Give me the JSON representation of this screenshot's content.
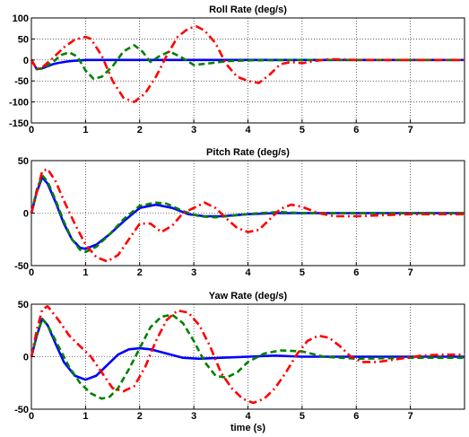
{
  "chart_data": [
    {
      "type": "line",
      "title": "Roll Rate (deg/s)",
      "xlabel": "",
      "ylabel": "",
      "xlim": [
        0,
        8
      ],
      "ylim": [
        -150,
        100
      ],
      "xticks": [
        0,
        1,
        2,
        3,
        4,
        5,
        6,
        7
      ],
      "yticks": [
        -150,
        -100,
        -50,
        0,
        50,
        100
      ],
      "grid": true,
      "series": [
        {
          "color": "#0000ff",
          "style": "solid",
          "x": [
            0,
            0.1,
            0.2,
            0.3,
            0.4,
            0.5,
            0.6,
            0.7,
            0.8,
            0.9,
            1.0,
            1.2,
            1.5,
            2.0,
            3.0,
            8.0
          ],
          "y": [
            0,
            -22,
            -20,
            -15,
            -10,
            -7,
            -5,
            -3,
            -2,
            -1,
            0,
            0,
            0,
            0,
            0,
            0
          ]
        },
        {
          "color": "#008000",
          "style": "dashed",
          "x": [
            0,
            0.1,
            0.2,
            0.4,
            0.55,
            0.7,
            0.85,
            1.0,
            1.15,
            1.3,
            1.5,
            1.7,
            1.9,
            2.05,
            2.2,
            2.35,
            2.55,
            2.75,
            3.0,
            3.3,
            3.6,
            4.0,
            5.0,
            8.0
          ],
          "y": [
            0,
            -22,
            -20,
            -5,
            12,
            18,
            8,
            -25,
            -45,
            -40,
            -15,
            20,
            35,
            20,
            -5,
            8,
            20,
            8,
            -12,
            -8,
            -3,
            -1,
            0,
            0
          ]
        },
        {
          "color": "#ff0000",
          "style": "dashdot",
          "x": [
            0,
            0.1,
            0.2,
            0.4,
            0.6,
            0.8,
            1.0,
            1.1,
            1.3,
            1.5,
            1.7,
            1.9,
            2.1,
            2.3,
            2.5,
            2.7,
            2.9,
            3.05,
            3.2,
            3.4,
            3.6,
            3.8,
            4.0,
            4.2,
            4.4,
            4.6,
            4.8,
            5.0,
            5.2,
            5.5,
            6.0,
            8.0
          ],
          "y": [
            0,
            -22,
            -18,
            5,
            30,
            48,
            55,
            50,
            10,
            -50,
            -90,
            -100,
            -80,
            -40,
            10,
            55,
            75,
            80,
            70,
            40,
            -10,
            -40,
            -50,
            -55,
            -35,
            -10,
            -5,
            -8,
            -3,
            2,
            0,
            0
          ]
        }
      ]
    },
    {
      "type": "line",
      "title": "Pitch Rate (deg/s)",
      "xlabel": "",
      "ylabel": "",
      "xlim": [
        0,
        8
      ],
      "ylim": [
        -50,
        50
      ],
      "xticks": [
        0,
        1,
        2,
        3,
        4,
        5,
        6,
        7
      ],
      "yticks": [
        -50,
        0,
        50
      ],
      "grid": true,
      "series": [
        {
          "color": "#0000ff",
          "style": "solid",
          "x": [
            0,
            0.1,
            0.2,
            0.3,
            0.45,
            0.6,
            0.75,
            0.9,
            1.0,
            1.2,
            1.45,
            1.7,
            2.0,
            2.3,
            2.6,
            2.9,
            3.2,
            3.5,
            4.0,
            4.5,
            5.0,
            5.5,
            8.0
          ],
          "y": [
            0,
            20,
            34,
            28,
            10,
            -10,
            -25,
            -33,
            -34,
            -30,
            -20,
            -8,
            5,
            8,
            5,
            -1,
            -3,
            -3,
            -1,
            0,
            0,
            0,
            0
          ]
        },
        {
          "color": "#008000",
          "style": "dashed",
          "x": [
            0,
            0.1,
            0.2,
            0.3,
            0.45,
            0.6,
            0.75,
            0.9,
            1.0,
            1.2,
            1.45,
            1.7,
            2.0,
            2.3,
            2.5,
            2.8,
            3.1,
            3.4,
            3.8,
            4.2,
            4.6,
            5.0,
            5.5,
            6.0,
            8.0
          ],
          "y": [
            0,
            22,
            36,
            30,
            12,
            -8,
            -25,
            -35,
            -37,
            -32,
            -20,
            -6,
            7,
            10,
            9,
            2,
            -3,
            -4,
            -2,
            0,
            1,
            0,
            0,
            0,
            0
          ]
        },
        {
          "color": "#ff0000",
          "style": "dashdot",
          "x": [
            0,
            0.1,
            0.2,
            0.3,
            0.45,
            0.6,
            0.8,
            1.0,
            1.2,
            1.4,
            1.6,
            1.8,
            2.0,
            2.2,
            2.4,
            2.6,
            2.8,
            3.0,
            3.2,
            3.4,
            3.6,
            3.8,
            4.0,
            4.2,
            4.4,
            4.6,
            4.8,
            5.0,
            5.3,
            5.6,
            6.0,
            6.5,
            7.0,
            8.0
          ],
          "y": [
            0,
            20,
            40,
            42,
            30,
            12,
            -10,
            -30,
            -42,
            -46,
            -40,
            -25,
            -10,
            -10,
            -18,
            -12,
            0,
            5,
            10,
            5,
            -5,
            -14,
            -18,
            -16,
            -6,
            4,
            8,
            6,
            0,
            -3,
            -3,
            -2,
            -1,
            -1
          ]
        }
      ]
    },
    {
      "type": "line",
      "title": "Yaw Rate (deg/s)",
      "xlabel": "time (s)",
      "ylabel": "",
      "xlim": [
        0,
        8
      ],
      "ylim": [
        -50,
        50
      ],
      "xticks": [
        0,
        1,
        2,
        3,
        4,
        5,
        6,
        7
      ],
      "yticks": [
        -50,
        0,
        50
      ],
      "grid": true,
      "series": [
        {
          "color": "#0000ff",
          "style": "solid",
          "x": [
            0,
            0.1,
            0.2,
            0.3,
            0.45,
            0.6,
            0.8,
            1.0,
            1.2,
            1.4,
            1.6,
            1.8,
            2.0,
            2.2,
            2.5,
            2.8,
            3.1,
            3.5,
            4.0,
            4.5,
            5.0,
            6.0,
            8.0
          ],
          "y": [
            0,
            20,
            36,
            30,
            12,
            -5,
            -18,
            -22,
            -18,
            -8,
            2,
            7,
            8,
            7,
            3,
            -1,
            -2,
            -1,
            0,
            1,
            0,
            0,
            0
          ]
        },
        {
          "color": "#008000",
          "style": "dashed",
          "x": [
            0,
            0.1,
            0.2,
            0.3,
            0.5,
            0.7,
            0.9,
            1.1,
            1.3,
            1.45,
            1.6,
            1.8,
            2.0,
            2.2,
            2.4,
            2.6,
            2.8,
            3.0,
            3.2,
            3.4,
            3.6,
            3.8,
            4.0,
            4.3,
            4.6,
            5.0,
            5.4,
            6.0,
            7.0,
            8.0
          ],
          "y": [
            0,
            20,
            36,
            30,
            10,
            -10,
            -25,
            -35,
            -40,
            -38,
            -30,
            -12,
            8,
            28,
            38,
            40,
            32,
            15,
            -5,
            -18,
            -20,
            -15,
            -5,
            3,
            6,
            5,
            0,
            -2,
            -1,
            -1
          ]
        },
        {
          "color": "#ff0000",
          "style": "dashdot",
          "x": [
            0,
            0.1,
            0.2,
            0.3,
            0.5,
            0.7,
            0.9,
            1.1,
            1.3,
            1.5,
            1.7,
            1.9,
            2.1,
            2.3,
            2.5,
            2.7,
            2.9,
            3.1,
            3.3,
            3.5,
            3.7,
            3.9,
            4.1,
            4.3,
            4.5,
            4.7,
            4.9,
            5.1,
            5.3,
            5.5,
            5.7,
            5.9,
            6.1,
            6.4,
            6.8,
            7.2,
            7.6,
            8.0
          ],
          "y": [
            0,
            25,
            45,
            48,
            35,
            20,
            10,
            0,
            -15,
            -30,
            -33,
            -28,
            -10,
            15,
            35,
            44,
            42,
            30,
            10,
            -15,
            -30,
            -40,
            -44,
            -40,
            -30,
            -15,
            2,
            15,
            20,
            18,
            10,
            0,
            -5,
            -5,
            -2,
            1,
            2,
            2
          ]
        }
      ]
    }
  ]
}
